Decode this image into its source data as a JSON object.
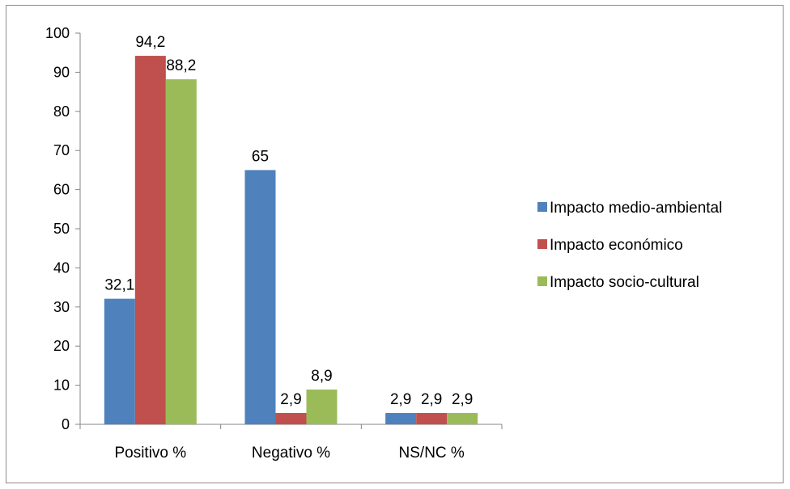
{
  "chart_data": {
    "type": "bar",
    "title": "",
    "xlabel": "",
    "ylabel": "",
    "categories": [
      "Positivo %",
      "Negativo %",
      "NS/NC %"
    ],
    "series": [
      {
        "name": "Impacto medio-ambiental",
        "values": [
          32.1,
          65,
          2.9
        ],
        "labels": [
          "32,1",
          "65",
          "2,9"
        ],
        "color": "#4f81bd"
      },
      {
        "name": "Impacto económico",
        "values": [
          94.2,
          2.9,
          2.9
        ],
        "labels": [
          "94,2",
          "2,9",
          "2,9"
        ],
        "color": "#c0504d"
      },
      {
        "name": "Impacto socio-cultural",
        "values": [
          88.2,
          8.9,
          2.9
        ],
        "labels": [
          "88,2",
          "8,9",
          "2,9"
        ],
        "color": "#9bbb59"
      }
    ],
    "ylim": [
      0,
      100
    ],
    "yticks": [
      0,
      10,
      20,
      30,
      40,
      50,
      60,
      70,
      80,
      90,
      100
    ],
    "grid": false,
    "legend_position": "right"
  }
}
